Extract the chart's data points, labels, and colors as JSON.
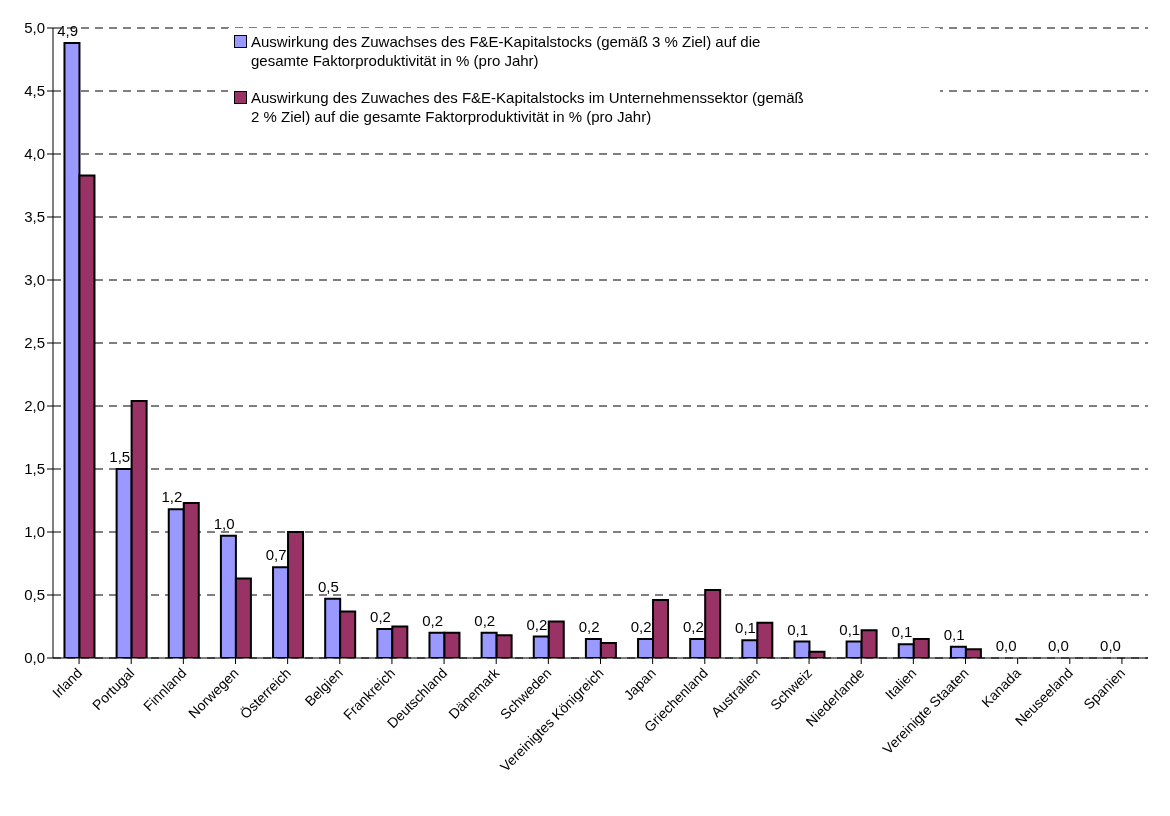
{
  "chart_data": {
    "type": "bar",
    "categories": [
      "Irland",
      "Portugal",
      "Finnland",
      "Norwegen",
      "Österreich",
      "Belgien",
      "Frankreich",
      "Deutschland",
      "Dänemark",
      "Schweden",
      "Vereinigtes Königreich",
      "Japan",
      "Griechenland",
      "Australien",
      "Schweiz",
      "Niederlande",
      "Italien",
      "Vereinigte Staaten",
      "Kanada",
      "Neuseeland",
      "Spanien"
    ],
    "series": [
      {
        "name": "Auswirkung des Zuwachses des F&E-Kapitalstocks (gemäß 3 % Ziel) auf die gesamte Faktorproduktivität in % (pro Jahr)",
        "color": "#9999ff",
        "values": [
          4.88,
          1.5,
          1.18,
          0.97,
          0.72,
          0.47,
          0.23,
          0.2,
          0.2,
          0.17,
          0.15,
          0.15,
          0.15,
          0.14,
          0.13,
          0.13,
          0.11,
          0.09,
          0,
          0,
          0
        ],
        "value_labels": [
          "4,9",
          "1,5",
          "1,2",
          "1,0",
          "0,7",
          "0,5",
          "0,2",
          "0,2",
          "0,2",
          "0,2",
          "0,2",
          "0,2",
          "0,2",
          "0,1",
          "0,1",
          "0,1",
          "0,1",
          "0,1",
          "0,0",
          "0,0",
          "0,0"
        ]
      },
      {
        "name": "Auswirkung des Zuwaches des F&E-Kapitalstocks im Unternehmenssektor (gemäß 2 % Ziel) auf die gesamte Faktorproduktivität in % (pro Jahr)",
        "color": "#993366",
        "values": [
          3.83,
          2.04,
          1.23,
          0.63,
          1.0,
          0.37,
          0.25,
          0.2,
          0.18,
          0.29,
          0.12,
          0.46,
          0.54,
          0.28,
          0.05,
          0.22,
          0.15,
          0.07,
          0,
          0,
          0
        ]
      }
    ],
    "ylim": [
      0,
      5
    ],
    "yticks": [
      {
        "value": 0,
        "label": "0,0"
      },
      {
        "value": 0.5,
        "label": "0,5"
      },
      {
        "value": 1,
        "label": "1,0"
      },
      {
        "value": 1.5,
        "label": "1,5"
      },
      {
        "value": 2,
        "label": "2,0"
      },
      {
        "value": 2.5,
        "label": "2,5"
      },
      {
        "value": 3,
        "label": "3,0"
      },
      {
        "value": 3.5,
        "label": "3,5"
      },
      {
        "value": 4,
        "label": "4,0"
      },
      {
        "value": 4.5,
        "label": "4,5"
      },
      {
        "value": 5,
        "label": "5,0"
      }
    ],
    "grid": "y",
    "legend": "top"
  }
}
